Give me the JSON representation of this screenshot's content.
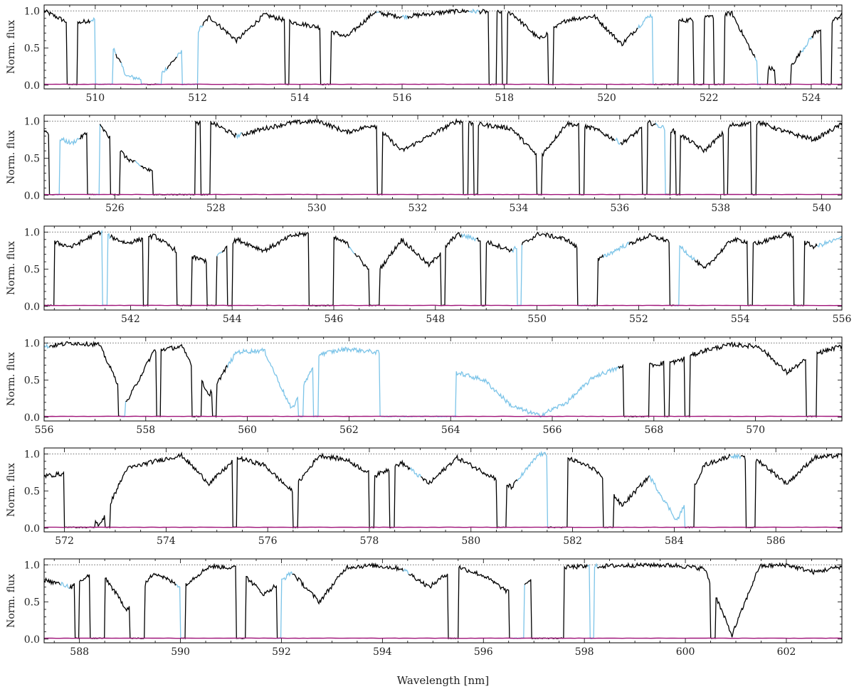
{
  "chart_data": {
    "type": "line",
    "ylabel": "Norm. flux",
    "xlabel": "Wavelength [nm]",
    "colors": {
      "flux": "#000000",
      "masked": "#7cc4e8",
      "error": "#a0157a",
      "continuum": "#555555"
    },
    "reference_line": {
      "y": 1.0,
      "style": "dotted"
    },
    "ylim": [
      -0.05,
      1.08
    ],
    "yticks": [
      "0.0",
      "0.5",
      "1.0"
    ],
    "ytick_values": [
      0.0,
      0.5,
      1.0
    ],
    "panels": [
      {
        "xlim": [
          509.0,
          524.6
        ],
        "xticks": [
          510,
          512,
          514,
          516,
          518,
          520,
          522,
          524
        ],
        "masked_regions": [
          [
            509.9,
            510.4
          ],
          [
            510.5,
            511.0
          ],
          [
            511.2,
            511.4
          ],
          [
            511.6,
            512.1
          ],
          [
            515.5,
            515.55
          ],
          [
            516.0,
            516.1
          ],
          [
            517.3,
            517.5
          ],
          [
            520.6,
            520.9
          ],
          [
            522.9,
            523.1
          ],
          [
            523.8,
            524.0
          ]
        ],
        "deep_regions": [
          [
            509.45,
            509.65
          ],
          [
            510.0,
            510.35
          ],
          [
            510.9,
            511.3
          ],
          [
            511.7,
            512.0
          ],
          [
            513.7,
            513.8
          ],
          [
            514.4,
            514.6
          ],
          [
            517.7,
            517.85
          ],
          [
            517.95,
            518.05
          ],
          [
            518.85,
            518.95
          ],
          [
            520.9,
            521.4
          ],
          [
            521.7,
            521.9
          ],
          [
            522.1,
            522.3
          ],
          [
            522.95,
            523.15
          ],
          [
            523.3,
            523.6
          ],
          [
            524.2,
            524.4
          ]
        ],
        "series_values": [
          1.0,
          0.82,
          0.9,
          0.12,
          0.05,
          0.45,
          0.92,
          0.6,
          0.95,
          0.85,
          0.78,
          0.65,
          0.98,
          0.92,
          0.96,
          1.0,
          0.99,
          0.97,
          0.62,
          0.88,
          0.93,
          0.55,
          0.94,
          0.86,
          0.9,
          0.97,
          0.25,
          0.18,
          0.7,
          0.95
        ]
      },
      {
        "xlim": [
          524.6,
          540.4
        ],
        "xticks": [
          526,
          528,
          530,
          532,
          534,
          536,
          538,
          540
        ],
        "masked_regions": [
          [
            524.8,
            525.3
          ],
          [
            525.6,
            525.7
          ],
          [
            526.4,
            526.5
          ],
          [
            528.4,
            528.5
          ],
          [
            535.9,
            536.0
          ],
          [
            536.7,
            536.9
          ]
        ],
        "deep_regions": [
          [
            524.7,
            524.9
          ],
          [
            525.45,
            525.7
          ],
          [
            525.9,
            526.1
          ],
          [
            526.75,
            527.6
          ],
          [
            527.7,
            527.9
          ],
          [
            531.2,
            531.3
          ],
          [
            532.9,
            533.0
          ],
          [
            533.1,
            533.2
          ],
          [
            534.35,
            534.45
          ],
          [
            535.2,
            535.3
          ],
          [
            536.45,
            536.55
          ],
          [
            536.9,
            537.0
          ],
          [
            537.1,
            537.2
          ],
          [
            538.05,
            538.15
          ],
          [
            538.6,
            538.7
          ]
        ],
        "series_values": [
          0.85,
          0.7,
          0.95,
          0.5,
          0.3,
          0.95,
          1.0,
          0.8,
          0.9,
          0.98,
          1.0,
          0.85,
          0.95,
          0.6,
          0.8,
          1.0,
          0.95,
          0.9,
          0.5,
          0.97,
          0.9,
          0.7,
          0.98,
          0.85,
          0.6,
          0.95,
          0.98,
          0.85,
          0.75,
          0.96
        ]
      },
      {
        "xlim": [
          540.3,
          556.0
        ],
        "xticks": [
          542,
          544,
          546,
          548,
          550,
          552,
          554,
          556
        ],
        "masked_regions": [
          [
            541.4,
            541.6
          ],
          [
            543.7,
            543.8
          ],
          [
            546.3,
            546.4
          ],
          [
            548.5,
            548.8
          ],
          [
            549.5,
            549.7
          ],
          [
            550.8,
            551.0
          ],
          [
            551.3,
            551.8
          ],
          [
            552.7,
            553.1
          ],
          [
            555.5,
            556.0
          ]
        ],
        "deep_regions": [
          [
            540.3,
            540.5
          ],
          [
            541.45,
            541.55
          ],
          [
            542.25,
            542.35
          ],
          [
            542.9,
            543.2
          ],
          [
            543.5,
            543.7
          ],
          [
            543.9,
            544.0
          ],
          [
            545.5,
            546.0
          ],
          [
            546.7,
            546.9
          ],
          [
            548.1,
            548.2
          ],
          [
            548.9,
            549.0
          ],
          [
            549.6,
            549.7
          ],
          [
            550.8,
            551.2
          ],
          [
            552.6,
            552.8
          ],
          [
            554.15,
            554.25
          ],
          [
            555.05,
            555.25
          ]
        ],
        "series_values": [
          0.9,
          0.8,
          1.0,
          0.85,
          0.95,
          0.7,
          0.6,
          0.9,
          0.75,
          0.95,
          1.0,
          0.85,
          0.4,
          0.9,
          0.55,
          0.97,
          0.88,
          0.75,
          0.98,
          0.9,
          0.6,
          0.8,
          0.95,
          0.85,
          0.5,
          0.9,
          0.85,
          0.98,
          0.8,
          0.92
        ]
      },
      {
        "xlim": [
          556.0,
          571.7
        ],
        "xticks": [
          556,
          558,
          560,
          562,
          564,
          566,
          568,
          570
        ],
        "masked_regions": [
          [
            556.0,
            556.1
          ],
          [
            557.5,
            557.6
          ],
          [
            559.6,
            567.3
          ]
        ],
        "deep_regions": [
          [
            557.45,
            557.6
          ],
          [
            558.2,
            558.3
          ],
          [
            558.9,
            559.1
          ],
          [
            559.3,
            559.4
          ],
          [
            561.0,
            561.1
          ],
          [
            561.3,
            561.4
          ],
          [
            562.6,
            564.1
          ],
          [
            567.4,
            567.9
          ],
          [
            568.2,
            568.3
          ],
          [
            568.6,
            568.7
          ],
          [
            571.0,
            571.2
          ]
        ],
        "series_values": [
          0.95,
          1.0,
          0.98,
          0.2,
          0.9,
          0.95,
          0.3,
          0.88,
          0.9,
          0.1,
          0.85,
          0.92,
          0.88,
          0.82,
          0.72,
          0.6,
          0.5,
          0.15,
          0.02,
          0.2,
          0.55,
          0.68,
          0.7,
          0.75,
          0.9,
          0.98,
          0.95,
          0.6,
          0.85,
          0.96
        ]
      },
      {
        "xlim": [
          571.6,
          587.3
        ],
        "xticks": [
          572,
          574,
          576,
          578,
          580,
          582,
          584,
          586
        ],
        "masked_regions": [
          [
            578.8,
            579.0
          ],
          [
            580.9,
            581.5
          ],
          [
            583.5,
            584.2
          ],
          [
            585.1,
            585.3
          ]
        ],
        "deep_regions": [
          [
            572.0,
            572.6
          ],
          [
            572.8,
            572.9
          ],
          [
            575.3,
            575.4
          ],
          [
            576.5,
            576.6
          ],
          [
            578.0,
            578.1
          ],
          [
            578.4,
            578.5
          ],
          [
            580.5,
            580.7
          ],
          [
            581.5,
            581.9
          ],
          [
            582.6,
            582.8
          ],
          [
            584.2,
            584.4
          ],
          [
            585.4,
            585.6
          ]
        ],
        "series_values": [
          0.7,
          0.75,
          0.02,
          0.8,
          0.9,
          0.98,
          0.6,
          0.95,
          0.85,
          0.5,
          0.98,
          0.92,
          0.7,
          0.88,
          0.6,
          0.95,
          0.75,
          0.55,
          1.0,
          0.95,
          0.8,
          0.3,
          0.7,
          0.1,
          0.85,
          0.98,
          0.9,
          0.6,
          0.95,
          0.98
        ]
      },
      {
        "xlim": [
          587.3,
          603.1
        ],
        "xticks": [
          588,
          590,
          592,
          594,
          596,
          598,
          600,
          602
        ],
        "masked_regions": [
          [
            587.6,
            587.8
          ],
          [
            589.9,
            590.0
          ],
          [
            591.9,
            592.2
          ],
          [
            594.4,
            594.5
          ],
          [
            596.5,
            596.8
          ],
          [
            598.05,
            598.25
          ]
        ],
        "deep_regions": [
          [
            587.9,
            588.0
          ],
          [
            588.2,
            588.5
          ],
          [
            589.0,
            589.3
          ],
          [
            590.0,
            590.1
          ],
          [
            591.1,
            591.3
          ],
          [
            591.9,
            592.0
          ],
          [
            595.3,
            595.5
          ],
          [
            596.5,
            596.8
          ],
          [
            596.95,
            597.6
          ],
          [
            598.1,
            598.2
          ],
          [
            600.5,
            600.6
          ]
        ],
        "series_values": [
          0.8,
          0.7,
          0.95,
          0.4,
          0.9,
          0.7,
          0.98,
          0.96,
          0.6,
          0.9,
          0.5,
          0.97,
          0.99,
          0.95,
          0.7,
          0.98,
          0.85,
          0.6,
          0.9,
          0.97,
          0.98,
          0.99,
          1.0,
          0.99,
          0.95,
          0.05,
          0.98,
          1.0,
          0.9,
          0.98
        ]
      }
    ]
  }
}
